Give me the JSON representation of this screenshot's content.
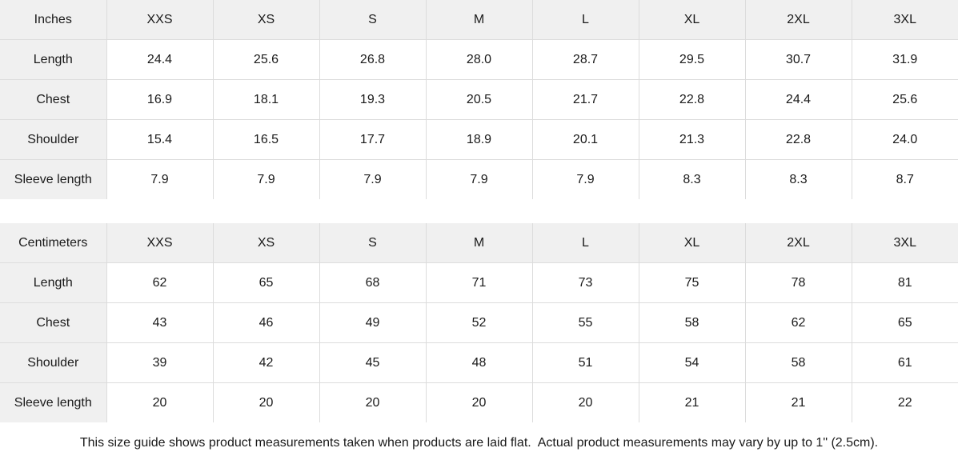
{
  "tables": [
    {
      "unit_label": "Inches",
      "sizes": [
        "XXS",
        "XS",
        "S",
        "M",
        "L",
        "XL",
        "2XL",
        "3XL"
      ],
      "rows": [
        {
          "label": "Length",
          "values": [
            "24.4",
            "25.6",
            "26.8",
            "28.0",
            "28.7",
            "29.5",
            "30.7",
            "31.9"
          ]
        },
        {
          "label": "Chest",
          "values": [
            "16.9",
            "18.1",
            "19.3",
            "20.5",
            "21.7",
            "22.8",
            "24.4",
            "25.6"
          ]
        },
        {
          "label": "Shoulder",
          "values": [
            "15.4",
            "16.5",
            "17.7",
            "18.9",
            "20.1",
            "21.3",
            "22.8",
            "24.0"
          ]
        },
        {
          "label": "Sleeve length",
          "values": [
            "7.9",
            "7.9",
            "7.9",
            "7.9",
            "7.9",
            "8.3",
            "8.3",
            "8.7"
          ]
        }
      ]
    },
    {
      "unit_label": "Centimeters",
      "sizes": [
        "XXS",
        "XS",
        "S",
        "M",
        "L",
        "XL",
        "2XL",
        "3XL"
      ],
      "rows": [
        {
          "label": "Length",
          "values": [
            "62",
            "65",
            "68",
            "71",
            "73",
            "75",
            "78",
            "81"
          ]
        },
        {
          "label": "Chest",
          "values": [
            "43",
            "46",
            "49",
            "52",
            "55",
            "58",
            "62",
            "65"
          ]
        },
        {
          "label": "Shoulder",
          "values": [
            "39",
            "42",
            "45",
            "48",
            "51",
            "54",
            "58",
            "61"
          ]
        },
        {
          "label": "Sleeve length",
          "values": [
            "20",
            "20",
            "20",
            "20",
            "20",
            "21",
            "21",
            "22"
          ]
        }
      ]
    }
  ],
  "footer": {
    "note": "This size guide shows product measurements taken when products are laid flat.  Actual product measurements may vary by up to 1\" (2.5cm)."
  },
  "colors": {
    "header_bg": "#f0f0f0",
    "border": "#dcdcdc",
    "text": "#1a1a1a",
    "background": "#ffffff"
  }
}
